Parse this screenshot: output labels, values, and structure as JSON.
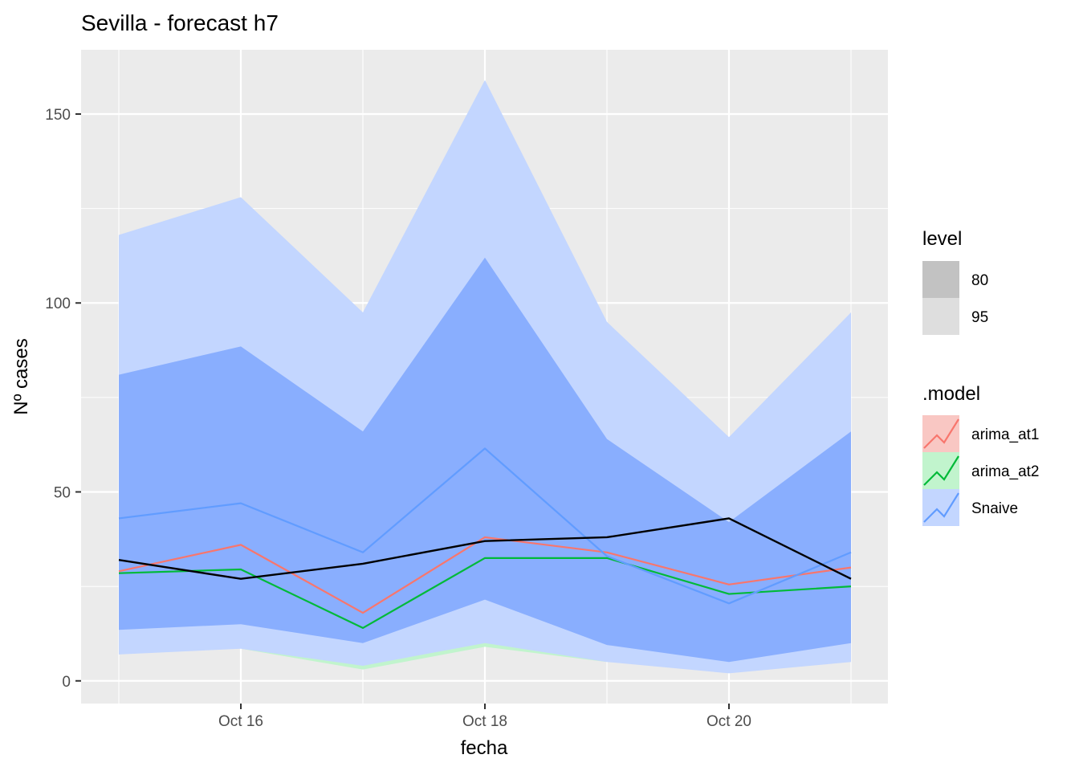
{
  "chart_data": {
    "type": "line",
    "title": "Sevilla - forecast h7",
    "xlabel": "fecha",
    "ylabel": "Nº cases",
    "x": [
      "Oct 15",
      "Oct 16",
      "Oct 17",
      "Oct 18",
      "Oct 19",
      "Oct 20",
      "Oct 21"
    ],
    "x_tick_labels": [
      "Oct 16",
      "Oct 18",
      "Oct 20"
    ],
    "x_tick_index": [
      1,
      3,
      5
    ],
    "y_ticks": [
      0,
      50,
      100,
      150
    ],
    "ylim": [
      -6,
      167
    ],
    "grid": true,
    "legend_position": "right",
    "legend_level": {
      "title": "level",
      "items": [
        {
          "label": "80",
          "color": "#c2c2c2"
        },
        {
          "label": "95",
          "color": "#dedede"
        }
      ]
    },
    "legend_model": {
      "title": ".model",
      "items": [
        {
          "label": "arima_at1",
          "color": "#f8766d",
          "fill": "#f9c7c3"
        },
        {
          "label": "arima_at2",
          "color": "#00ba38",
          "fill": "#c1f4cd"
        },
        {
          "label": "Snaive",
          "color": "#619cff",
          "fill": "#c3d6ff"
        }
      ]
    },
    "series": [
      {
        "name": "arima_at1",
        "color": "#f8766d",
        "values": [
          29,
          36,
          18,
          38,
          34,
          25.5,
          30
        ]
      },
      {
        "name": "arima_at2",
        "color": "#00ba38",
        "values": [
          28.5,
          29.5,
          14,
          32.5,
          32.5,
          23,
          25
        ]
      },
      {
        "name": "Snaive",
        "color": "#619cff",
        "values": [
          43,
          47,
          34,
          61.5,
          33,
          20.5,
          34
        ]
      },
      {
        "name": "",
        "color": "#000000",
        "values": [
          32,
          27,
          31,
          37,
          38,
          43,
          27
        ]
      }
    ],
    "intervals": [
      {
        "model": "arima_at2",
        "level": "95",
        "color": "#c1f4cd",
        "lower": [
          7,
          8.5,
          3,
          9,
          5,
          2,
          5
        ],
        "upper": [
          7,
          8.5,
          5,
          12.5,
          5,
          2,
          5
        ]
      },
      {
        "model": "Snaive",
        "level": "95",
        "color": "#c3d6ff",
        "lower": [
          7,
          8.5,
          4,
          10,
          5,
          2,
          5
        ],
        "upper": [
          118,
          128,
          97.5,
          159,
          95,
          64.5,
          97.5
        ]
      },
      {
        "model": "Snaive",
        "level": "80",
        "color": "#89aefe",
        "lower": [
          13.5,
          15,
          10,
          21.5,
          9.5,
          5,
          10
        ],
        "upper": [
          81,
          88.5,
          66,
          112,
          64,
          42,
          66
        ]
      }
    ]
  }
}
